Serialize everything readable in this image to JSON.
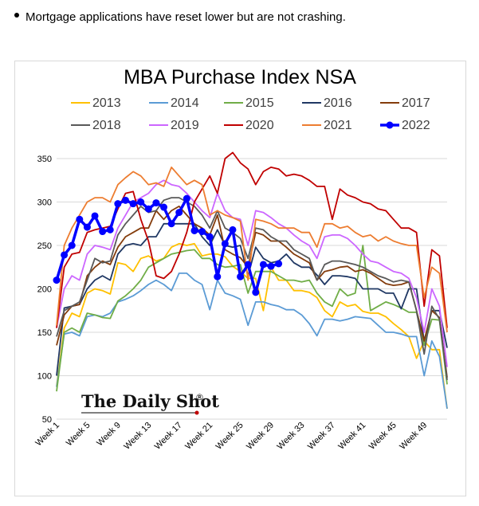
{
  "note": {
    "icon": "bullet-icon",
    "text": "Mortgage applications have reset lower but are not crashing."
  },
  "brand": {
    "name": "The Daily Shot",
    "mark": "®"
  },
  "chart_data": {
    "type": "line",
    "title": "MBA Purchase Index NSA",
    "xlabel": "",
    "ylabel": "",
    "x_ticks": [
      "Week 1",
      "Week 5",
      "Week 9",
      "Week 13",
      "Week 17",
      "Week 21",
      "Week 25",
      "Week 29",
      "Week 33",
      "Week 37",
      "Week 41",
      "Week 45",
      "Week 49"
    ],
    "x_tick_weeks": [
      1,
      5,
      9,
      13,
      17,
      21,
      25,
      29,
      33,
      37,
      41,
      45,
      49
    ],
    "xlim": [
      1,
      52
    ],
    "ylim": [
      50,
      350
    ],
    "y_ticks": [
      50,
      100,
      150,
      200,
      250,
      300,
      350
    ],
    "grid": "horizontal",
    "legend_position": "top",
    "series": [
      {
        "name": "2013",
        "color": "#FFC000",
        "values": [
          88,
          155,
          172,
          168,
          195,
          200,
          198,
          194,
          230,
          228,
          220,
          235,
          238,
          232,
          235,
          248,
          252,
          250,
          252,
          238,
          240,
          240,
          237,
          226,
          220,
          212,
          212,
          175,
          225,
          210,
          210,
          198,
          198,
          196,
          190,
          175,
          168,
          185,
          180,
          182,
          174,
          172,
          172,
          168,
          160,
          153,
          145,
          120,
          140,
          130,
          130,
          62
        ]
      },
      {
        "name": "2014",
        "color": "#5B9BD5",
        "values": [
          87,
          148,
          150,
          146,
          168,
          170,
          168,
          172,
          185,
          188,
          192,
          198,
          205,
          210,
          205,
          198,
          218,
          218,
          210,
          205,
          176,
          210,
          195,
          192,
          188,
          158,
          185,
          185,
          182,
          180,
          176,
          176,
          170,
          160,
          146,
          165,
          165,
          163,
          165,
          168,
          167,
          166,
          158,
          150,
          150,
          148,
          145,
          145,
          100,
          140,
          122,
          62
        ]
      },
      {
        "name": "2015",
        "color": "#70AD47",
        "values": [
          82,
          150,
          155,
          150,
          172,
          170,
          167,
          166,
          186,
          192,
          200,
          210,
          225,
          230,
          235,
          240,
          242,
          244,
          245,
          235,
          235,
          228,
          225,
          226,
          228,
          195,
          220,
          220,
          220,
          215,
          210,
          210,
          208,
          210,
          195,
          185,
          180,
          200,
          192,
          195,
          250,
          175,
          180,
          185,
          182,
          178,
          173,
          173,
          135,
          165,
          164,
          90
        ]
      },
      {
        "name": "2016",
        "color": "#203864",
        "values": [
          100,
          178,
          180,
          182,
          200,
          210,
          215,
          210,
          240,
          250,
          252,
          250,
          260,
          260,
          275,
          275,
          275,
          275,
          275,
          260,
          250,
          268,
          250,
          248,
          250,
          215,
          248,
          235,
          230,
          232,
          240,
          230,
          225,
          225,
          216,
          205,
          215,
          215,
          214,
          212,
          200,
          200,
          200,
          195,
          195,
          177,
          200,
          200,
          140,
          175,
          175,
          132
        ]
      },
      {
        "name": "2017",
        "color": "#843C0C",
        "values": [
          135,
          170,
          180,
          182,
          215,
          225,
          232,
          228,
          248,
          260,
          265,
          270,
          270,
          290,
          280,
          290,
          295,
          285,
          275,
          270,
          262,
          285,
          245,
          240,
          236,
          225,
          265,
          262,
          255,
          255,
          248,
          240,
          235,
          230,
          210,
          220,
          222,
          225,
          226,
          220,
          222,
          218,
          212,
          206,
          204,
          205,
          208,
          175,
          140,
          175,
          167,
          98
        ]
      },
      {
        "name": "2018",
        "color": "#595959",
        "values": [
          145,
          175,
          180,
          185,
          210,
          235,
          230,
          232,
          262,
          275,
          285,
          295,
          288,
          290,
          302,
          305,
          305,
          300,
          295,
          285,
          270,
          290,
          270,
          265,
          258,
          235,
          270,
          268,
          260,
          255,
          255,
          245,
          240,
          235,
          210,
          228,
          232,
          232,
          230,
          228,
          225,
          220,
          215,
          212,
          208,
          210,
          208,
          175,
          125,
          180,
          165,
          95
        ]
      },
      {
        "name": "2019",
        "color": "#CC66FF",
        "values": [
          155,
          200,
          215,
          210,
          240,
          250,
          248,
          245,
          270,
          285,
          300,
          305,
          310,
          320,
          325,
          320,
          318,
          310,
          300,
          290,
          282,
          310,
          290,
          282,
          280,
          250,
          290,
          288,
          282,
          275,
          270,
          262,
          255,
          250,
          235,
          260,
          262,
          262,
          258,
          250,
          240,
          232,
          230,
          225,
          220,
          218,
          212,
          190,
          150,
          200,
          180,
          110
        ]
      },
      {
        "name": "2020",
        "color": "#C00000",
        "values": [
          155,
          225,
          240,
          242,
          265,
          268,
          270,
          272,
          292,
          310,
          312,
          280,
          255,
          215,
          212,
          220,
          240,
          265,
          300,
          315,
          330,
          310,
          350,
          357,
          345,
          338,
          320,
          335,
          340,
          338,
          330,
          332,
          330,
          325,
          318,
          318,
          280,
          315,
          308,
          305,
          300,
          298,
          292,
          290,
          280,
          270,
          270,
          265,
          180,
          245,
          238,
          155
        ]
      },
      {
        "name": "2021",
        "color": "#ED7D31",
        "values": [
          158,
          250,
          270,
          285,
          300,
          305,
          305,
          300,
          320,
          328,
          335,
          330,
          320,
          322,
          318,
          340,
          330,
          320,
          325,
          320,
          285,
          290,
          285,
          282,
          278,
          210,
          280,
          278,
          275,
          270,
          270,
          270,
          265,
          265,
          248,
          275,
          275,
          270,
          272,
          265,
          260,
          262,
          255,
          260,
          255,
          252,
          250,
          250,
          190,
          225,
          218,
          150
        ]
      },
      {
        "name": "2022",
        "color": "#0000FF",
        "marker": "circle",
        "values": [
          210,
          239,
          250,
          280,
          271,
          284,
          266,
          268,
          298,
          302,
          298,
          300,
          292,
          299,
          294,
          275,
          288,
          304,
          267,
          266,
          260,
          214,
          252,
          268,
          214,
          228,
          196,
          228,
          226,
          229
        ]
      }
    ]
  }
}
